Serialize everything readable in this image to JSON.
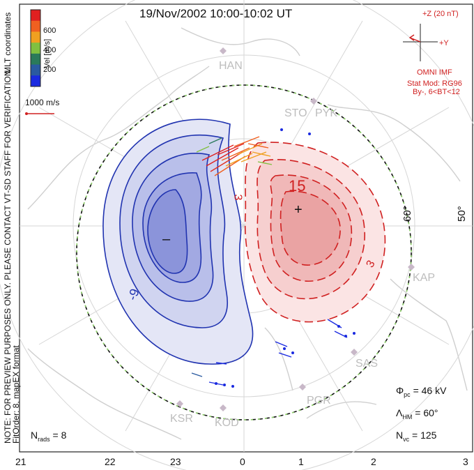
{
  "title": "19/Nov/2002  10:00-10:02 UT",
  "left_margin": {
    "note_line1": "NOTE: FOR PREVIEW PURPOSES ONLY. PLEASE CONTACT VT-SD STAFF FOR VERIFICATION.",
    "note_line2": "FitOrder: 8, mapEX format",
    "coords": "MLT coordinates"
  },
  "color_scale": {
    "label": "Vel [m/s]",
    "ticks": [
      "600",
      "400",
      "200"
    ],
    "colors": [
      "#e02020",
      "#f06020",
      "#f0a020",
      "#80c040",
      "#2a7a5a",
      "#2a5aa0",
      "#1a2ae0"
    ]
  },
  "velocity_ref": {
    "label": "1000 m/s",
    "color": "#d02020"
  },
  "imf": {
    "z_label": "+Z (20 nT)",
    "y_label": "+Y",
    "source": "OMNI IMF",
    "model": "Stat Mod: RG96",
    "condition": "By-, 6<BT<12"
  },
  "stations": [
    "HAN",
    "STO",
    "PYK",
    "KAP",
    "SAS",
    "PGR",
    "KSR",
    "KOD"
  ],
  "lat_labels": [
    "60°",
    "50°"
  ],
  "contours": {
    "pos_labels": [
      "15",
      "3"
    ],
    "neg_labels": [
      "-9"
    ],
    "max_marker": "+",
    "min_marker": "–"
  },
  "stats": {
    "phi_pc_symbol": "Φ",
    "phi_pc_sub": "pc",
    "phi_pc_value": "= 46 kV",
    "lambda_symbol": "Λ",
    "lambda_sub": "HM",
    "lambda_value": "= 60°",
    "nvc_symbol": "N",
    "nvc_sub": "vc",
    "nvc_value": "= 125",
    "nrads_symbol": "N",
    "nrads_sub": "rads",
    "nrads_value": "= 8"
  },
  "mlt_axis": [
    "21",
    "22",
    "23",
    "0",
    "1",
    "2",
    "3"
  ]
}
